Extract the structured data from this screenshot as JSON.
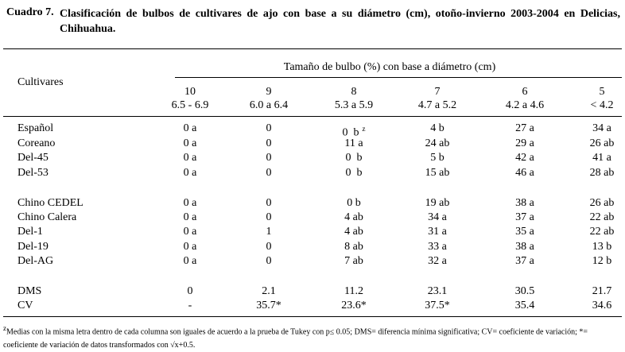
{
  "caption": {
    "label": "Cuadro 7.",
    "title": "Clasificación de bulbos de cultivares de ajo con base a su diámetro (cm), otoño-invierno 2003-2004 en Delicias, Chihuahua."
  },
  "table": {
    "row_header": "Cultivares",
    "group_header": "Tamaño de bulbo (%) con base a diámetro (cm)",
    "columns": [
      {
        "size": "10",
        "range": "6.5 - 6.9"
      },
      {
        "size": "9",
        "range": "6.0 a 6.4"
      },
      {
        "size": "8",
        "range": "5.3 a 5.9"
      },
      {
        "size": "7",
        "range": "4.7 a 5.2"
      },
      {
        "size": "6",
        "range": "4.2 a 4.6"
      },
      {
        "size": "5",
        "range": "< 4.2"
      }
    ],
    "rows": [
      {
        "name": "Español",
        "cells": [
          "0 a",
          "0",
          "0  b",
          "4 b",
          "27 a",
          "34 a"
        ],
        "note_mark": "z"
      },
      {
        "name": "Coreano",
        "cells": [
          "0 a",
          "0",
          "11 a",
          "24 ab",
          "29 a",
          "26 ab"
        ]
      },
      {
        "name": "Del-45",
        "cells": [
          "0 a",
          "0",
          "0  b",
          "5 b",
          "42 a",
          "41 a"
        ]
      },
      {
        "name": "Del-53",
        "cells": [
          "0 a",
          "0",
          "0  b",
          "15 ab",
          "46 a",
          "28 ab"
        ]
      },
      {
        "name": "Chino CEDEL",
        "cells": [
          "0 a",
          "0",
          "0 b",
          "19 ab",
          "38 a",
          "26 ab"
        ]
      },
      {
        "name": "Chino Calera",
        "cells": [
          "0 a",
          "0",
          "4 ab",
          "34 a",
          "37 a",
          "22 ab"
        ]
      },
      {
        "name": "Del-1",
        "cells": [
          "0 a",
          "1",
          "4 ab",
          "31 a",
          "35 a",
          "22 ab"
        ]
      },
      {
        "name": "Del-19",
        "cells": [
          "0 a",
          "0",
          "8 ab",
          "33 a",
          "38 a",
          "13 b"
        ]
      },
      {
        "name": "Del-AG",
        "cells": [
          "0 a",
          "0",
          "7 ab",
          "32 a",
          "37 a",
          "12 b"
        ]
      },
      {
        "name": "DMS",
        "cells": [
          "0",
          "2.1",
          "11.2",
          "23.1",
          "30.5",
          "21.7"
        ]
      },
      {
        "name": "CV",
        "cells": [
          "-",
          "35.7*",
          "23.6*",
          "37.5*",
          "35.4",
          "34.6"
        ]
      }
    ]
  },
  "footnote": {
    "mark": "z",
    "text": "Medias con la misma letra dentro de cada columna son iguales de acuerdo a la prueba de Tukey con p≤ 0.05; DMS= diferencia mínima significativa; CV= coeficiente de variación; *= coeficiente de variación de datos transformados con √x+0.5."
  }
}
